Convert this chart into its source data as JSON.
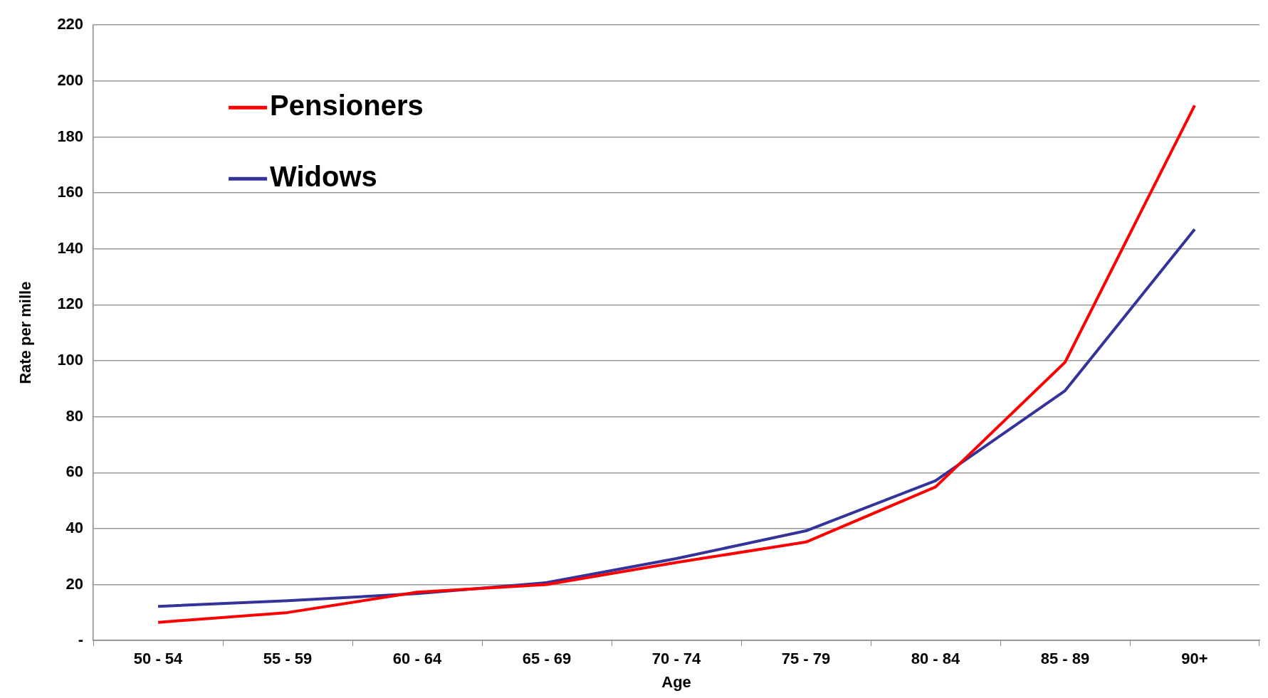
{
  "chart_data": {
    "type": "line",
    "xlabel": "Age",
    "ylabel": "Rate per mille",
    "categories": [
      "50 - 54",
      "55 - 59",
      "60 - 64",
      "65 - 69",
      "70 - 74",
      "75 - 79",
      "80 - 84",
      "85 - 89",
      "90+"
    ],
    "series": [
      {
        "name": "Pensioners",
        "color": "#ff0000",
        "values": [
          6.5,
          10,
          17.3,
          20,
          27.9,
          35.2,
          54.9,
          99.5,
          191.3
        ]
      },
      {
        "name": "Widows",
        "color": "#333399",
        "values": [
          12.2,
          14.2,
          16.8,
          20.7,
          29.3,
          39.2,
          57.1,
          89.3,
          147
        ]
      }
    ],
    "ylim": [
      0,
      220
    ],
    "yticks": [
      {
        "value": 0,
        "label": "-"
      },
      20,
      40,
      60,
      80,
      100,
      120,
      140,
      160,
      180,
      200,
      220
    ],
    "grid": "y",
    "legend": "top left",
    "marker": "none",
    "line_style": "solid"
  }
}
